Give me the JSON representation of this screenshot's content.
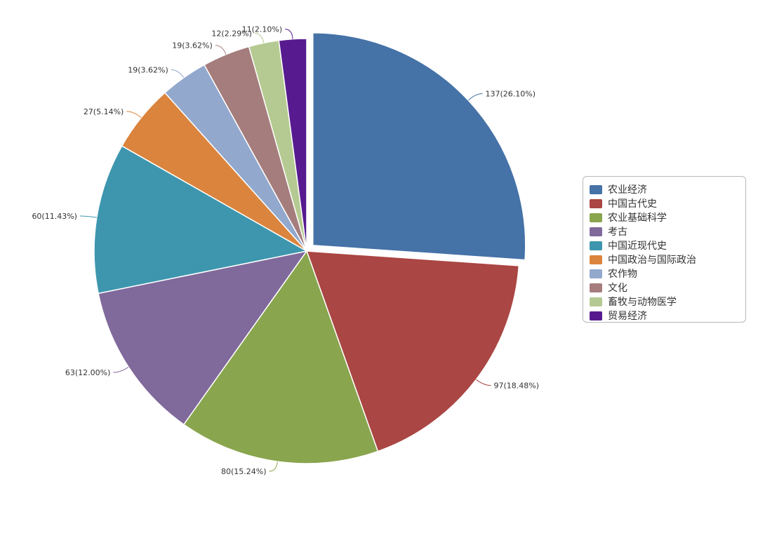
{
  "chart_data": {
    "type": "pie",
    "slices": [
      {
        "name": "农业经济",
        "value": 137,
        "percent": "26.10%",
        "label": "137(26.10%)",
        "color": "#4572a7",
        "exploded": true
      },
      {
        "name": "中国古代史",
        "value": 97,
        "percent": "18.48%",
        "label": "97(18.48%)",
        "color": "#aa4643"
      },
      {
        "name": "农业基础科学",
        "value": 80,
        "percent": "15.24%",
        "label": "80(15.24%)",
        "color": "#89a54e"
      },
      {
        "name": "考古",
        "value": 63,
        "percent": "12.00%",
        "label": "63(12.00%)",
        "color": "#80699b"
      },
      {
        "name": "中国近现代史",
        "value": 60,
        "percent": "11.43%",
        "label": "60(11.43%)",
        "color": "#3d96ae"
      },
      {
        "name": "中国政治与国际政治",
        "value": 27,
        "percent": "5.14%",
        "label": "27(5.14%)",
        "color": "#db843d"
      },
      {
        "name": "农作物",
        "value": 19,
        "percent": "3.62%",
        "label": "19(3.62%)",
        "color": "#92a8cd"
      },
      {
        "name": "文化",
        "value": 19,
        "percent": "3.62%",
        "label": "19(3.62%)",
        "color": "#a47d7c"
      },
      {
        "name": "畜牧与动物医学",
        "value": 12,
        "percent": "2.29%",
        "label": "12(2.29%)",
        "color": "#b5ca92"
      },
      {
        "name": "贸易经济",
        "value": 11,
        "percent": "2.10%",
        "label": "11(2.10%)",
        "color": "#571b8f"
      }
    ],
    "legend_position": "right"
  }
}
